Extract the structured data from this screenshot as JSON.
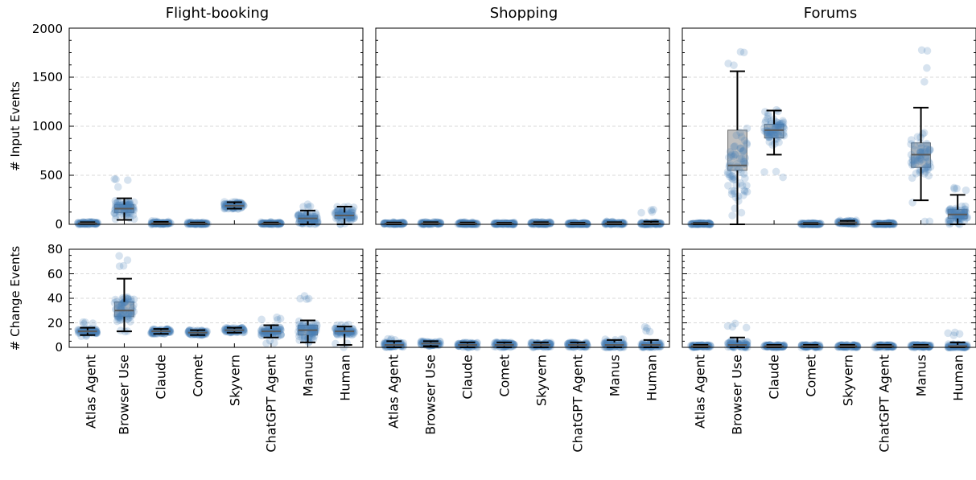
{
  "chart_data": {
    "type": "box-strip",
    "column_titles": [
      "Flight-booking",
      "Shopping",
      "Forums"
    ],
    "categories": [
      "Atlas Agent",
      "Browser Use",
      "Claude",
      "Comet",
      "Skyvern",
      "ChatGPT Agent",
      "Manus",
      "Human"
    ],
    "point_color": "#4a7fb5",
    "box_color": "#8c8c8c",
    "grid": "horizontal dashed",
    "rows": [
      {
        "ylabel": "# Input Events",
        "ylim": [
          0,
          2000
        ],
        "yticks": [
          "0",
          "500",
          "1000",
          "1500",
          "2000"
        ],
        "panels": [
          {
            "column": "Flight-booking",
            "series": [
              {
                "category": "Atlas Agent",
                "q1": 5,
                "median": 10,
                "q3": 15,
                "whisker_low": 2,
                "whisker_high": 22,
                "points_min": 0,
                "points_max": 30
              },
              {
                "category": "Browser Use",
                "q1": 120,
                "median": 160,
                "q3": 200,
                "whisker_low": 45,
                "whisker_high": 265,
                "points_min": 40,
                "points_max": 470
              },
              {
                "category": "Claude",
                "q1": 5,
                "median": 10,
                "q3": 15,
                "whisker_low": 2,
                "whisker_high": 25,
                "points_min": 0,
                "points_max": 35
              },
              {
                "category": "Comet",
                "q1": 5,
                "median": 8,
                "q3": 12,
                "whisker_low": 2,
                "whisker_high": 18,
                "points_min": 0,
                "points_max": 25
              },
              {
                "category": "Skyvern",
                "q1": 175,
                "median": 190,
                "q3": 205,
                "whisker_low": 160,
                "whisker_high": 225,
                "points_min": 155,
                "points_max": 235
              },
              {
                "category": "ChatGPT Agent",
                "q1": 5,
                "median": 8,
                "q3": 12,
                "whisker_low": 2,
                "whisker_high": 18,
                "points_min": 0,
                "points_max": 25
              },
              {
                "category": "Manus",
                "q1": 30,
                "median": 60,
                "q3": 90,
                "whisker_low": 0,
                "whisker_high": 140,
                "points_min": 0,
                "points_max": 210
              },
              {
                "category": "Human",
                "q1": 60,
                "median": 90,
                "q3": 120,
                "whisker_low": 0,
                "whisker_high": 180,
                "points_min": 0,
                "points_max": 200
              }
            ]
          },
          {
            "column": "Shopping",
            "series": [
              {
                "category": "Atlas Agent",
                "q1": 4,
                "median": 8,
                "q3": 12,
                "whisker_low": 0,
                "whisker_high": 18,
                "points_min": 0,
                "points_max": 22
              },
              {
                "category": "Browser Use",
                "q1": 6,
                "median": 10,
                "q3": 15,
                "whisker_low": 1,
                "whisker_high": 22,
                "points_min": 0,
                "points_max": 28
              },
              {
                "category": "Claude",
                "q1": 4,
                "median": 8,
                "q3": 12,
                "whisker_low": 0,
                "whisker_high": 18,
                "points_min": 0,
                "points_max": 24
              },
              {
                "category": "Comet",
                "q1": 3,
                "median": 6,
                "q3": 10,
                "whisker_low": 0,
                "whisker_high": 15,
                "points_min": 0,
                "points_max": 20
              },
              {
                "category": "Skyvern",
                "q1": 5,
                "median": 10,
                "q3": 15,
                "whisker_low": 0,
                "whisker_high": 22,
                "points_min": 0,
                "points_max": 28
              },
              {
                "category": "ChatGPT Agent",
                "q1": 3,
                "median": 6,
                "q3": 10,
                "whisker_low": 0,
                "whisker_high": 15,
                "points_min": 0,
                "points_max": 20
              },
              {
                "category": "Manus",
                "q1": 5,
                "median": 10,
                "q3": 15,
                "whisker_low": 0,
                "whisker_high": 22,
                "points_min": 0,
                "points_max": 30
              },
              {
                "category": "Human",
                "q1": 4,
                "median": 8,
                "q3": 15,
                "whisker_low": 0,
                "whisker_high": 28,
                "points_min": 0,
                "points_max": 170
              }
            ]
          },
          {
            "column": "Forums",
            "series": [
              {
                "category": "Atlas Agent",
                "q1": 2,
                "median": 5,
                "q3": 8,
                "whisker_low": 0,
                "whisker_high": 12,
                "points_min": 0,
                "points_max": 15
              },
              {
                "category": "Browser Use",
                "q1": 550,
                "median": 600,
                "q3": 960,
                "whisker_low": 0,
                "whisker_high": 1560,
                "points_min": 0,
                "points_max": 1960
              },
              {
                "category": "Claude",
                "q1": 880,
                "median": 960,
                "q3": 1020,
                "whisker_low": 710,
                "whisker_high": 1160,
                "points_min": 450,
                "points_max": 1180
              },
              {
                "category": "Comet",
                "q1": 2,
                "median": 5,
                "q3": 8,
                "whisker_low": 0,
                "whisker_high": 12,
                "points_min": 0,
                "points_max": 15
              },
              {
                "category": "Skyvern",
                "q1": 10,
                "median": 18,
                "q3": 25,
                "whisker_low": 2,
                "whisker_high": 35,
                "points_min": 0,
                "points_max": 42
              },
              {
                "category": "ChatGPT Agent",
                "q1": 2,
                "median": 5,
                "q3": 8,
                "whisker_low": 0,
                "whisker_high": 12,
                "points_min": 0,
                "points_max": 15
              },
              {
                "category": "Manus",
                "q1": 580,
                "median": 710,
                "q3": 830,
                "whisker_low": 245,
                "whisker_high": 1190,
                "points_min": 0,
                "points_max": 1780
              },
              {
                "category": "Human",
                "q1": 60,
                "median": 100,
                "q3": 150,
                "whisker_low": 0,
                "whisker_high": 300,
                "points_min": 0,
                "points_max": 410
              }
            ]
          }
        ]
      },
      {
        "ylabel": "# Change Events",
        "ylim": [
          0,
          80
        ],
        "yticks": [
          "0",
          "20",
          "40",
          "60",
          "80"
        ],
        "panels": [
          {
            "column": "Flight-booking",
            "series": [
              {
                "category": "Atlas Agent",
                "q1": 12,
                "median": 13,
                "q3": 14,
                "whisker_low": 10,
                "whisker_high": 16,
                "points_min": 9,
                "points_max": 21
              },
              {
                "category": "Browser Use",
                "q1": 25,
                "median": 30,
                "q3": 37,
                "whisker_low": 13,
                "whisker_high": 56,
                "points_min": 12,
                "points_max": 79
              },
              {
                "category": "Claude",
                "q1": 12,
                "median": 13,
                "q3": 14,
                "whisker_low": 11,
                "whisker_high": 15,
                "points_min": 11,
                "points_max": 15
              },
              {
                "category": "Comet",
                "q1": 11,
                "median": 12,
                "q3": 13,
                "whisker_low": 10,
                "whisker_high": 14,
                "points_min": 10,
                "points_max": 14
              },
              {
                "category": "Skyvern",
                "q1": 13,
                "median": 14,
                "q3": 15,
                "whisker_low": 12,
                "whisker_high": 16,
                "points_min": 12,
                "points_max": 16
              },
              {
                "category": "ChatGPT Agent",
                "q1": 11,
                "median": 13,
                "q3": 15,
                "whisker_low": 8,
                "whisker_high": 18,
                "points_min": 3,
                "points_max": 25
              },
              {
                "category": "Manus",
                "q1": 10,
                "median": 14,
                "q3": 18,
                "whisker_low": 4,
                "whisker_high": 22,
                "points_min": 3,
                "points_max": 44
              },
              {
                "category": "Human",
                "q1": 11,
                "median": 13,
                "q3": 14,
                "whisker_low": 2,
                "whisker_high": 17,
                "points_min": 0,
                "points_max": 19
              }
            ]
          },
          {
            "column": "Shopping",
            "series": [
              {
                "category": "Atlas Agent",
                "q1": 1,
                "median": 2,
                "q3": 3,
                "whisker_low": 0,
                "whisker_high": 5,
                "points_min": 0,
                "points_max": 7
              },
              {
                "category": "Browser Use",
                "q1": 2,
                "median": 3,
                "q3": 4,
                "whisker_low": 1,
                "whisker_high": 5,
                "points_min": 1,
                "points_max": 5
              },
              {
                "category": "Claude",
                "q1": 1,
                "median": 2,
                "q3": 3,
                "whisker_low": 0,
                "whisker_high": 4,
                "points_min": 0,
                "points_max": 4
              },
              {
                "category": "Comet",
                "q1": 1,
                "median": 2,
                "q3": 3,
                "whisker_low": 0,
                "whisker_high": 4,
                "points_min": 0,
                "points_max": 4
              },
              {
                "category": "Skyvern",
                "q1": 1,
                "median": 2,
                "q3": 3,
                "whisker_low": 0,
                "whisker_high": 4,
                "points_min": 0,
                "points_max": 4
              },
              {
                "category": "ChatGPT Agent",
                "q1": 1,
                "median": 2,
                "q3": 3,
                "whisker_low": 0,
                "whisker_high": 4,
                "points_min": 0,
                "points_max": 4
              },
              {
                "category": "Manus",
                "q1": 1,
                "median": 2,
                "q3": 4,
                "whisker_low": 0,
                "whisker_high": 6,
                "points_min": 0,
                "points_max": 7
              },
              {
                "category": "Human",
                "q1": 1,
                "median": 2,
                "q3": 3,
                "whisker_low": 0,
                "whisker_high": 6,
                "points_min": 0,
                "points_max": 18
              }
            ]
          },
          {
            "column": "Forums",
            "series": [
              {
                "category": "Atlas Agent",
                "q1": 0,
                "median": 1,
                "q3": 1,
                "whisker_low": 0,
                "whisker_high": 2,
                "points_min": 0,
                "points_max": 2
              },
              {
                "category": "Browser Use",
                "q1": 1,
                "median": 2,
                "q3": 4,
                "whisker_low": 0,
                "whisker_high": 8,
                "points_min": 0,
                "points_max": 21
              },
              {
                "category": "Claude",
                "q1": 0,
                "median": 1,
                "q3": 1,
                "whisker_low": 0,
                "whisker_high": 2,
                "points_min": 0,
                "points_max": 2
              },
              {
                "category": "Comet",
                "q1": 0,
                "median": 1,
                "q3": 1,
                "whisker_low": 0,
                "whisker_high": 2,
                "points_min": 0,
                "points_max": 2
              },
              {
                "category": "Skyvern",
                "q1": 0,
                "median": 1,
                "q3": 1,
                "whisker_low": 0,
                "whisker_high": 2,
                "points_min": 0,
                "points_max": 2
              },
              {
                "category": "ChatGPT Agent",
                "q1": 0,
                "median": 1,
                "q3": 1,
                "whisker_low": 0,
                "whisker_high": 2,
                "points_min": 0,
                "points_max": 2
              },
              {
                "category": "Manus",
                "q1": 0,
                "median": 1,
                "q3": 1,
                "whisker_low": 0,
                "whisker_high": 2,
                "points_min": 0,
                "points_max": 2
              },
              {
                "category": "Human",
                "q1": 0,
                "median": 1,
                "q3": 2,
                "whisker_low": 0,
                "whisker_high": 4,
                "points_min": 0,
                "points_max": 13
              }
            ]
          }
        ]
      }
    ]
  }
}
